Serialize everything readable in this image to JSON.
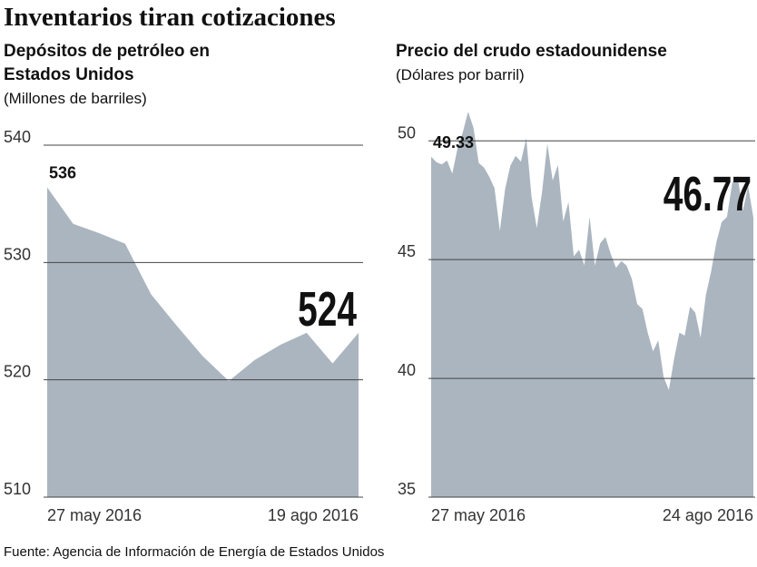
{
  "title": "Inventarios tiran cotizaciones",
  "source": "Fuente: Agencia de Información de Energía de Estados Unidos",
  "chart_data": [
    {
      "type": "area",
      "title": "Depósitos de petróleo en Estados Unidos",
      "subtitle": "(Millones de barriles)",
      "color": "#aab5bf",
      "categories": [
        "27 may 2016",
        null,
        null,
        null,
        null,
        null,
        null,
        null,
        null,
        null,
        null,
        null,
        "19 ago 2016"
      ],
      "values": [
        536.4,
        533.3,
        532.5,
        531.6,
        527.3,
        524.6,
        522.0,
        519.9,
        521.7,
        523.0,
        524.0,
        521.4,
        524.0
      ],
      "value_labels": [
        "536",
        null,
        null,
        null,
        null,
        null,
        null,
        null,
        null,
        null,
        null,
        null,
        "524"
      ],
      "ylim": [
        510,
        540
      ],
      "yticks": [
        510,
        520,
        530,
        540
      ],
      "grid": true
    },
    {
      "type": "area",
      "title": "Precio del crudo estadounidense",
      "subtitle": "(Dólares por barril)",
      "color": "#aab5bf",
      "categories": [
        "27 may 2016",
        null,
        null,
        null,
        null,
        null,
        null,
        null,
        null,
        null,
        null,
        null,
        null,
        null,
        null,
        null,
        null,
        null,
        null,
        null,
        null,
        null,
        null,
        null,
        null,
        null,
        null,
        null,
        null,
        null,
        null,
        null,
        null,
        null,
        null,
        null,
        null,
        null,
        null,
        null,
        null,
        null,
        null,
        null,
        null,
        null,
        null,
        null,
        null,
        null,
        null,
        null,
        null,
        null,
        null,
        null,
        null,
        null,
        null,
        null,
        null,
        "24 ago 2016"
      ],
      "values": [
        49.33,
        49.1,
        49.01,
        49.17,
        48.62,
        49.69,
        50.36,
        51.23,
        50.56,
        49.07,
        48.88,
        48.49,
        48.01,
        46.21,
        47.98,
        48.96,
        49.37,
        49.13,
        50.11,
        47.64,
        46.33,
        47.85,
        49.88,
        48.33,
        48.99,
        46.6,
        47.43,
        45.14,
        45.41,
        44.76,
        46.8,
        44.75,
        45.68,
        45.95,
        45.24,
        44.65,
        44.94,
        44.75,
        44.19,
        43.13,
        42.92,
        41.92,
        41.14,
        41.6,
        40.06,
        39.51,
        40.83,
        41.93,
        41.8,
        43.02,
        42.77,
        41.71,
        43.49,
        44.49,
        45.74,
        46.58,
        46.79,
        48.22,
        48.52,
        47.05,
        48.1,
        46.77
      ],
      "value_labels": [
        "49.33",
        null,
        null,
        null,
        null,
        null,
        null,
        null,
        null,
        null,
        null,
        null,
        null,
        null,
        null,
        null,
        null,
        null,
        null,
        null,
        null,
        null,
        null,
        null,
        null,
        null,
        null,
        null,
        null,
        null,
        null,
        null,
        null,
        null,
        null,
        null,
        null,
        null,
        null,
        null,
        null,
        null,
        null,
        null,
        null,
        null,
        null,
        null,
        null,
        null,
        null,
        null,
        null,
        null,
        null,
        null,
        null,
        null,
        null,
        null,
        null,
        "46.77"
      ],
      "ylim": [
        35,
        51.5
      ],
      "yticks": [
        35,
        40,
        45,
        50
      ],
      "grid": true
    }
  ]
}
